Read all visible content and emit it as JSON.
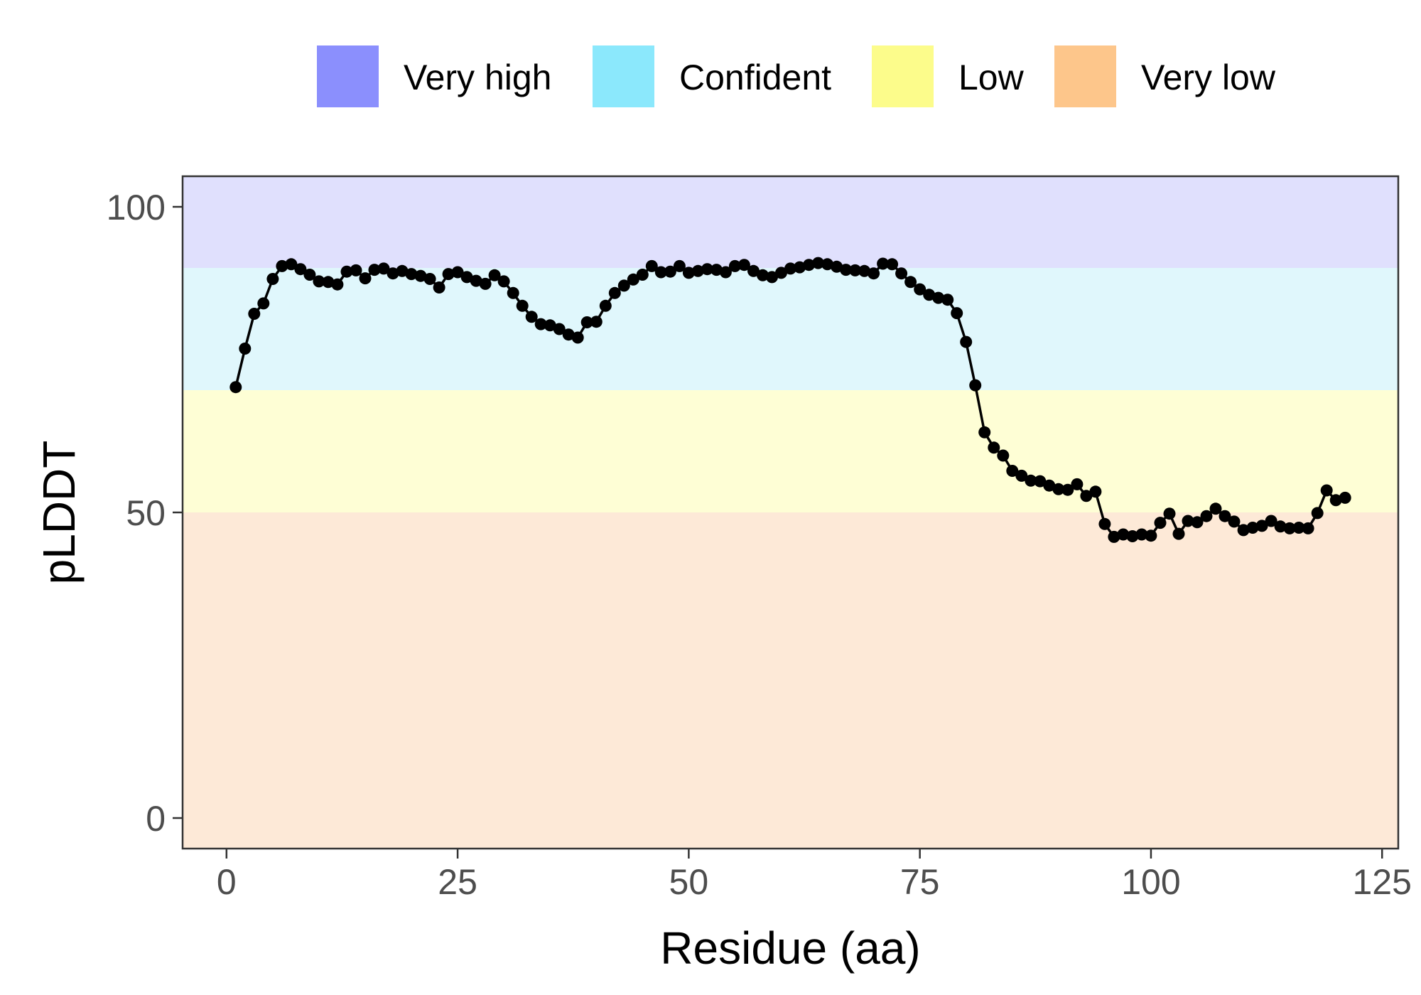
{
  "chart_data": {
    "type": "line",
    "title": "",
    "xlabel": "Residue (aa)",
    "ylabel": "pLDDT",
    "xlim": [
      -4.75,
      126.75
    ],
    "ylim": [
      -5,
      105
    ],
    "x_ticks": [
      0,
      25,
      50,
      75,
      100,
      125
    ],
    "y_ticks": [
      0,
      50,
      100
    ],
    "grid": false,
    "legend_position": "top",
    "line_color": "#000000",
    "bands": [
      {
        "label": "Very high",
        "from": 90,
        "to": 105,
        "color": "#e0e0fd",
        "key_color": "#8b8ffd"
      },
      {
        "label": "Confident",
        "from": 70,
        "to": 90,
        "color": "#e0f7fc",
        "key_color": "#8be8fc"
      },
      {
        "label": "Low",
        "from": 50,
        "to": 70,
        "color": "#fefed5",
        "key_color": "#fcfc8b"
      },
      {
        "label": "Very low",
        "from": -5,
        "to": 50,
        "color": "#fde9d7",
        "key_color": "#fdc68b"
      }
    ],
    "x": [
      1,
      2,
      3,
      4,
      5,
      6,
      7,
      8,
      9,
      10,
      11,
      12,
      13,
      14,
      15,
      16,
      17,
      18,
      19,
      20,
      21,
      22,
      23,
      24,
      25,
      26,
      27,
      28,
      29,
      30,
      31,
      32,
      33,
      34,
      35,
      36,
      37,
      38,
      39,
      40,
      41,
      42,
      43,
      44,
      45,
      46,
      47,
      48,
      49,
      50,
      51,
      52,
      53,
      54,
      55,
      56,
      57,
      58,
      59,
      60,
      61,
      62,
      63,
      64,
      65,
      66,
      67,
      68,
      69,
      70,
      71,
      72,
      73,
      74,
      75,
      76,
      77,
      78,
      79,
      80,
      81,
      82,
      83,
      84,
      85,
      86,
      87,
      88,
      89,
      90,
      91,
      92,
      93,
      94,
      95,
      96,
      97,
      98,
      99,
      100,
      101,
      102,
      103,
      104,
      105,
      106,
      107,
      108,
      109,
      110,
      111,
      112,
      113,
      114,
      115,
      116,
      117,
      118,
      119,
      120,
      121
    ],
    "y": [
      70.5,
      76.8,
      82.5,
      84.2,
      88.2,
      90.3,
      90.6,
      89.8,
      88.9,
      87.8,
      87.7,
      87.3,
      89.4,
      89.6,
      88.3,
      89.7,
      89.9,
      89.1,
      89.5,
      89.0,
      88.7,
      88.2,
      86.8,
      89.0,
      89.3,
      88.5,
      87.9,
      87.4,
      88.8,
      87.8,
      85.9,
      83.8,
      82.0,
      80.8,
      80.6,
      80.0,
      79.1,
      78.6,
      81.1,
      81.2,
      83.8,
      85.9,
      87.1,
      88.1,
      88.9,
      90.3,
      89.3,
      89.4,
      90.3,
      89.2,
      89.5,
      89.8,
      89.7,
      89.3,
      90.3,
      90.5,
      89.5,
      88.8,
      88.5,
      89.2,
      89.9,
      90.1,
      90.5,
      90.8,
      90.6,
      90.2,
      89.7,
      89.6,
      89.5,
      89.1,
      90.7,
      90.6,
      89.1,
      87.7,
      86.5,
      85.6,
      85.1,
      84.8,
      82.6,
      77.9,
      70.8,
      63.1,
      60.6,
      59.3,
      56.8,
      56.0,
      55.2,
      55.1,
      54.4,
      53.8,
      53.7,
      54.6,
      52.7,
      53.4,
      48.1,
      46.0,
      46.4,
      46.1,
      46.4,
      46.2,
      48.3,
      49.8,
      46.5,
      48.6,
      48.4,
      49.4,
      50.6,
      49.4,
      48.5,
      47.1,
      47.5,
      47.8,
      48.6,
      47.7,
      47.4,
      47.5,
      47.4,
      49.9,
      53.6,
      52.0,
      52.4
    ]
  }
}
